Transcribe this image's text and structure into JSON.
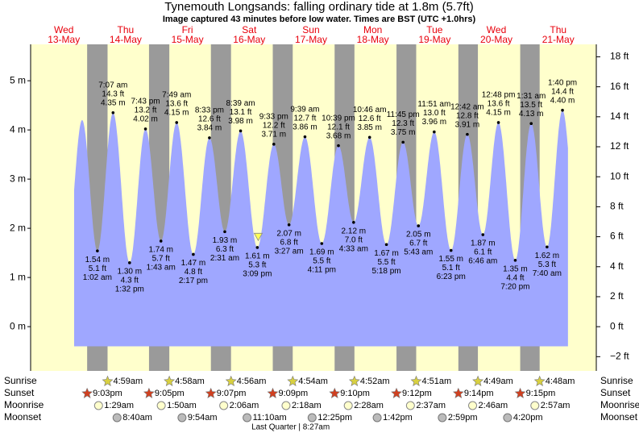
{
  "chart_data": {
    "type": "tide",
    "title": "Tynemouth Longsands: falling  ordinary tide at 1.8m (5.7ft)",
    "subtitle": "Image captured 43 minutes before low water. Times are BST (UTC +1.0hrs)",
    "xlim": [
      -0.9,
      218.8
    ],
    "ylim": [
      -0.9,
      5.74
    ],
    "yticks": [
      {
        "value": 0,
        "label": "0 m"
      },
      {
        "value": 1,
        "label": "1 m"
      },
      {
        "value": 2,
        "label": "2 m"
      },
      {
        "value": 3,
        "label": "3 m"
      },
      {
        "value": 4,
        "label": "4 m"
      },
      {
        "value": 5,
        "label": "5 m"
      }
    ],
    "y2lim": [
      -2.95,
      18.83
    ],
    "y2ticks": [
      {
        "value": -2,
        "label": "−2 ft"
      },
      {
        "value": 0,
        "label": "0 ft"
      },
      {
        "value": 2,
        "label": "2 ft"
      },
      {
        "value": 4,
        "label": "4 ft"
      },
      {
        "value": 6,
        "label": "6 ft"
      },
      {
        "value": 8,
        "label": "8 ft"
      },
      {
        "value": 10,
        "label": "10 ft"
      },
      {
        "value": 12,
        "label": "12 ft"
      },
      {
        "value": 14,
        "label": "14 ft"
      },
      {
        "value": 16,
        "label": "16 ft"
      },
      {
        "value": 18,
        "label": "18 ft"
      }
    ],
    "fill_bottom": -0.4,
    "curve_hours": [
      16,
      207.8
    ],
    "first_high": {
      "hour": 19.1,
      "height": 4.2
    },
    "now": {
      "hour": 87.5,
      "height": 1.8
    },
    "colors": {
      "plot": "#ffffcc",
      "night": "#9a9a9a",
      "water": "#9fa7ff",
      "day_label": "#e8000b"
    },
    "row_labels": [
      "Sunrise",
      "Sunset",
      "Moonrise",
      "Moonset"
    ],
    "days": [
      {
        "weekday": "Wed",
        "date": "13-May",
        "sunset": "9:03pm",
        "tides": []
      },
      {
        "weekday": "Thu",
        "date": "14-May",
        "sunrise": "4:59am",
        "sunset": "9:05pm",
        "moonrise": "1:29am",
        "moonset": "8:40am",
        "tides": [
          {
            "time": "1:02 am",
            "height": 1.54,
            "height_label": "1.54 m",
            "feet_label": "5.1 ft"
          },
          {
            "time": "7:07 am",
            "height": 4.35,
            "height_label": "4.35 m",
            "feet_label": "14.3 ft"
          },
          {
            "time": "1:32 pm",
            "height": 1.3,
            "height_label": "1.30 m",
            "feet_label": "4.3 ft"
          },
          {
            "time": "7:43 pm",
            "height": 4.02,
            "height_label": "4.02 m",
            "feet_label": "13.2 ft"
          }
        ]
      },
      {
        "weekday": "Fri",
        "date": "15-May",
        "sunrise": "4:58am",
        "sunset": "9:07pm",
        "moonrise": "1:50am",
        "moonset": "9:54am",
        "tides": [
          {
            "time": "1:43 am",
            "height": 1.74,
            "height_label": "1.74 m",
            "feet_label": "5.7 ft"
          },
          {
            "time": "7:49 am",
            "height": 4.15,
            "height_label": "4.15 m",
            "feet_label": "13.6 ft"
          },
          {
            "time": "2:17 pm",
            "height": 1.47,
            "height_label": "1.47 m",
            "feet_label": "4.8 ft"
          },
          {
            "time": "8:33 pm",
            "height": 3.84,
            "height_label": "3.84 m",
            "feet_label": "12.6 ft"
          }
        ]
      },
      {
        "weekday": "Sat",
        "date": "16-May",
        "sunrise": "4:56am",
        "sunset": "9:09pm",
        "moonrise": "2:06am",
        "moonset": "11:10am",
        "tides": [
          {
            "time": "2:31 am",
            "height": 1.93,
            "height_label": "1.93 m",
            "feet_label": "6.3 ft"
          },
          {
            "time": "8:39 am",
            "height": 3.98,
            "height_label": "3.98 m",
            "feet_label": "13.1 ft"
          },
          {
            "time": "3:09 pm",
            "height": 1.61,
            "height_label": "1.61 m",
            "feet_label": "5.3 ft"
          },
          {
            "time": "9:33 pm",
            "height": 3.71,
            "height_label": "3.71 m",
            "feet_label": "12.2 ft"
          }
        ]
      },
      {
        "weekday": "Sun",
        "date": "17-May",
        "sunrise": "4:54am",
        "sunset": "9:10pm",
        "moonrise": "2:18am",
        "moonset": "12:25pm",
        "moon_phase": "Last Quarter | 8:27am",
        "tides": [
          {
            "time": "3:27 am",
            "height": 2.07,
            "height_label": "2.07 m",
            "feet_label": "6.8 ft"
          },
          {
            "time": "9:39 am",
            "height": 3.86,
            "height_label": "3.86 m",
            "feet_label": "12.7 ft"
          },
          {
            "time": "4:11 pm",
            "height": 1.69,
            "height_label": "1.69 m",
            "feet_label": "5.5 ft"
          },
          {
            "time": "10:39 pm",
            "height": 3.68,
            "height_label": "3.68 m",
            "feet_label": "12.1 ft"
          }
        ]
      },
      {
        "weekday": "Mon",
        "date": "18-May",
        "sunrise": "4:52am",
        "sunset": "9:12pm",
        "moonrise": "2:28am",
        "moonset": "1:42pm",
        "tides": [
          {
            "time": "4:33 am",
            "height": 2.12,
            "height_label": "2.12 m",
            "feet_label": "7.0 ft"
          },
          {
            "time": "10:46 am",
            "height": 3.85,
            "height_label": "3.85 m",
            "feet_label": "12.6 ft"
          },
          {
            "time": "5:18 pm",
            "height": 1.67,
            "height_label": "1.67 m",
            "feet_label": "5.5 ft"
          },
          {
            "time": "11:45 pm",
            "height": 3.75,
            "height_label": "3.75 m",
            "feet_label": "12.3 ft"
          }
        ]
      },
      {
        "weekday": "Tue",
        "date": "19-May",
        "sunrise": "4:51am",
        "sunset": "9:14pm",
        "moonrise": "2:37am",
        "moonset": "2:59pm",
        "tides": [
          {
            "time": "5:43 am",
            "height": 2.05,
            "height_label": "2.05 m",
            "feet_label": "6.7 ft"
          },
          {
            "time": "11:51 am",
            "height": 3.96,
            "height_label": "3.96 m",
            "feet_label": "13.0 ft"
          },
          {
            "time": "6:23 pm",
            "height": 1.55,
            "height_label": "1.55 m",
            "feet_label": "5.1 ft"
          }
        ]
      },
      {
        "weekday": "Wed",
        "date": "20-May",
        "sunrise": "4:49am",
        "sunset": "9:15pm",
        "moonrise": "2:46am",
        "moonset": "4:20pm",
        "tides": [
          {
            "time": "12:42 am",
            "height": 3.91,
            "height_label": "3.91 m",
            "feet_label": "12.8 ft"
          },
          {
            "time": "6:46 am",
            "height": 1.87,
            "height_label": "1.87 m",
            "feet_label": "6.1 ft"
          },
          {
            "time": "12:48 pm",
            "height": 4.15,
            "height_label": "4.15 m",
            "feet_label": "13.6 ft"
          },
          {
            "time": "7:20 pm",
            "height": 1.35,
            "height_label": "1.35 m",
            "feet_label": "4.4 ft"
          }
        ]
      },
      {
        "weekday": "Thu",
        "date": "21-May",
        "sunrise": "4:48am",
        "moonrise": "2:57am",
        "tides": [
          {
            "time": "1:31 am",
            "height": 4.13,
            "height_label": "4.13 m",
            "feet_label": "13.5 ft"
          },
          {
            "time": "7:40 am",
            "height": 1.62,
            "height_label": "1.62 m",
            "feet_label": "5.3 ft"
          },
          {
            "time": "1:40 pm",
            "height": 4.4,
            "height_label": "4.40 m",
            "feet_label": "14.4 ft"
          }
        ]
      }
    ]
  }
}
